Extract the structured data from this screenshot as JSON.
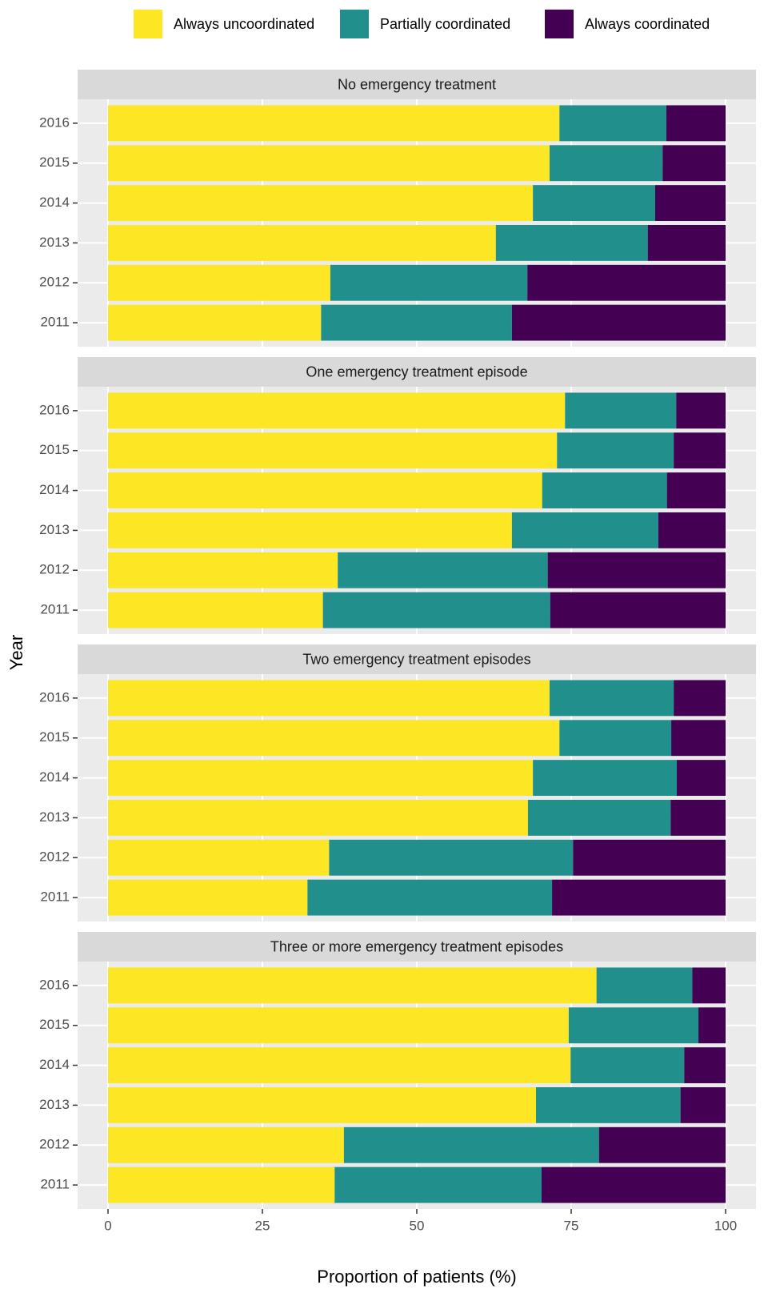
{
  "chart_data": {
    "type": "bar",
    "orientation": "horizontal",
    "stacked": true,
    "x_label": "Proportion of patients (%)",
    "y_label": "Year",
    "categories": [
      "2016",
      "2015",
      "2014",
      "2013",
      "2012",
      "2011"
    ],
    "facets": [
      "No emergency treatment",
      "One emergency treatment episode",
      "Two emergency treatment episodes",
      "Three or more emergency treatment episodes"
    ],
    "xlim": [
      0,
      100
    ],
    "xticks": [
      0,
      25,
      50,
      75,
      100
    ],
    "grid": true,
    "legend": "top",
    "series": [
      {
        "name": "Always uncoordinated",
        "color": "#fde725",
        "values": [
          [
            73.1,
            71.5,
            68.8,
            62.8,
            36.0,
            34.5
          ],
          [
            74.0,
            72.7,
            70.3,
            65.4,
            37.2,
            34.8
          ],
          [
            71.5,
            73.1,
            68.8,
            68.0,
            35.8,
            32.3
          ],
          [
            79.1,
            74.6,
            74.9,
            69.3,
            38.2,
            36.7
          ]
        ]
      },
      {
        "name": "Partially coordinated",
        "color": "#21908c",
        "values": [
          [
            17.3,
            18.3,
            19.8,
            24.6,
            31.9,
            30.9
          ],
          [
            18.0,
            18.9,
            20.2,
            23.7,
            34.0,
            36.8
          ],
          [
            20.1,
            18.1,
            23.3,
            23.1,
            39.5,
            39.6
          ],
          [
            15.5,
            21.0,
            18.4,
            23.4,
            41.3,
            33.5
          ]
        ]
      },
      {
        "name": "Always coordinated",
        "color": "#440154",
        "values": [
          [
            9.6,
            10.2,
            11.4,
            12.6,
            32.1,
            34.6
          ],
          [
            8.0,
            8.4,
            9.5,
            10.9,
            28.8,
            28.4
          ],
          [
            8.4,
            8.8,
            7.9,
            8.9,
            24.7,
            28.1
          ],
          [
            5.4,
            4.4,
            6.7,
            7.3,
            20.5,
            29.8
          ]
        ]
      }
    ]
  }
}
